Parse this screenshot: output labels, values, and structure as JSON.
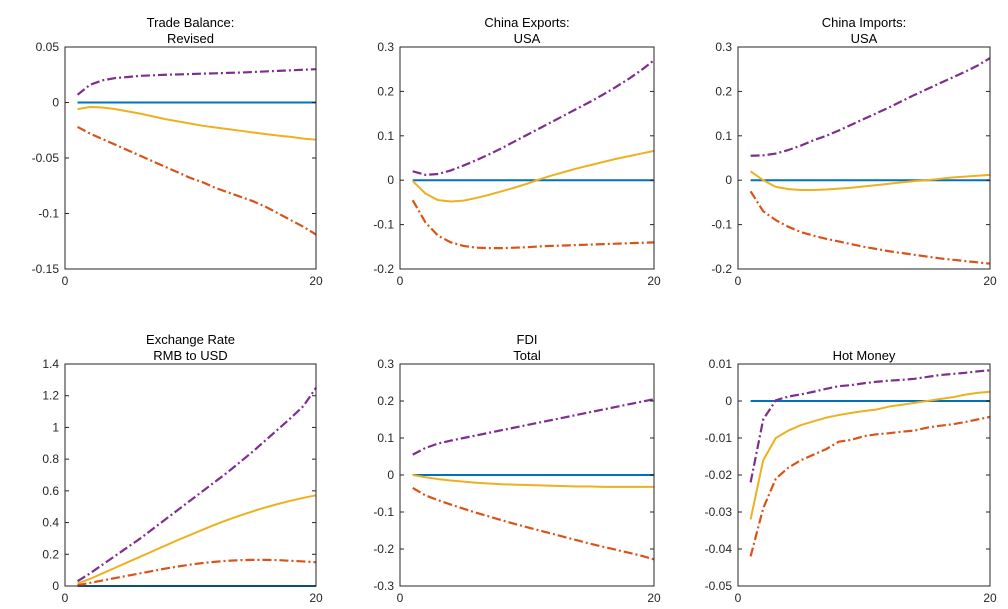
{
  "colors": {
    "zero": "#0072BD",
    "median": "#EDB120",
    "lower": "#D95319",
    "upper": "#7E2F8E",
    "axis": "#262626"
  },
  "chart_data": [
    {
      "type": "line",
      "title": [
        "Trade Balance:",
        "Revised"
      ],
      "xlim": [
        0,
        20
      ],
      "ylim": [
        -0.15,
        0.05
      ],
      "xticks": [
        0,
        20
      ],
      "xtick_labels": [
        "0",
        "20"
      ],
      "yticks": [
        -0.15,
        -0.1,
        -0.05,
        0,
        0.05
      ],
      "ytick_labels": [
        "-0.15",
        "-0.1",
        "-0.05",
        "0",
        "0.05"
      ],
      "x": [
        1,
        2,
        3,
        4,
        5,
        6,
        7,
        8,
        9,
        10,
        11,
        12,
        13,
        14,
        15,
        16,
        17,
        18,
        19,
        20
      ],
      "series": [
        {
          "role": "zero",
          "values": [
            0,
            0,
            0,
            0,
            0,
            0,
            0,
            0,
            0,
            0,
            0,
            0,
            0,
            0,
            0,
            0,
            0,
            0,
            0,
            0
          ]
        },
        {
          "role": "median",
          "values": [
            -0.006,
            -0.004,
            -0.0045,
            -0.006,
            -0.008,
            -0.01,
            -0.0125,
            -0.015,
            -0.017,
            -0.019,
            -0.021,
            -0.0225,
            -0.024,
            -0.0255,
            -0.027,
            -0.0285,
            -0.0298,
            -0.031,
            -0.0325,
            -0.0335
          ]
        },
        {
          "role": "lower",
          "values": [
            -0.022,
            -0.028,
            -0.033,
            -0.038,
            -0.043,
            -0.048,
            -0.053,
            -0.058,
            -0.063,
            -0.068,
            -0.072,
            -0.077,
            -0.081,
            -0.085,
            -0.089,
            -0.094,
            -0.1,
            -0.106,
            -0.112,
            -0.119
          ]
        },
        {
          "role": "upper",
          "values": [
            0.007,
            0.016,
            0.02,
            0.022,
            0.023,
            0.024,
            0.0245,
            0.025,
            0.0253,
            0.0256,
            0.026,
            0.0263,
            0.0267,
            0.027,
            0.0275,
            0.028,
            0.0285,
            0.029,
            0.0295,
            0.03
          ]
        }
      ]
    },
    {
      "type": "line",
      "title": [
        "China Exports:",
        "USA"
      ],
      "xlim": [
        0,
        20
      ],
      "ylim": [
        -0.2,
        0.3
      ],
      "xticks": [
        0,
        20
      ],
      "xtick_labels": [
        "0",
        "20"
      ],
      "yticks": [
        -0.2,
        -0.1,
        0,
        0.1,
        0.2,
        0.3
      ],
      "ytick_labels": [
        "-0.2",
        "-0.1",
        "0",
        "0.1",
        "0.2",
        "0.3"
      ],
      "x": [
        1,
        2,
        3,
        4,
        5,
        6,
        7,
        8,
        9,
        10,
        11,
        12,
        13,
        14,
        15,
        16,
        17,
        18,
        19,
        20
      ],
      "series": [
        {
          "role": "zero",
          "values": [
            0,
            0,
            0,
            0,
            0,
            0,
            0,
            0,
            0,
            0,
            0,
            0,
            0,
            0,
            0,
            0,
            0,
            0,
            0,
            0
          ]
        },
        {
          "role": "median",
          "values": [
            -0.002,
            -0.03,
            -0.045,
            -0.048,
            -0.046,
            -0.04,
            -0.033,
            -0.025,
            -0.017,
            -0.008,
            0.002,
            0.011,
            0.019,
            0.027,
            0.034,
            0.041,
            0.048,
            0.054,
            0.06,
            0.066
          ]
        },
        {
          "role": "lower",
          "values": [
            -0.045,
            -0.095,
            -0.125,
            -0.14,
            -0.148,
            -0.152,
            -0.153,
            -0.153,
            -0.152,
            -0.151,
            -0.149,
            -0.148,
            -0.147,
            -0.146,
            -0.145,
            -0.144,
            -0.143,
            -0.142,
            -0.141,
            -0.14
          ]
        },
        {
          "role": "upper",
          "values": [
            0.02,
            0.012,
            0.014,
            0.022,
            0.033,
            0.045,
            0.058,
            0.072,
            0.087,
            0.102,
            0.117,
            0.132,
            0.147,
            0.162,
            0.177,
            0.193,
            0.21,
            0.228,
            0.248,
            0.27
          ]
        }
      ]
    },
    {
      "type": "line",
      "title": [
        "China Imports:",
        "USA"
      ],
      "xlim": [
        0,
        20
      ],
      "ylim": [
        -0.2,
        0.3
      ],
      "xticks": [
        0,
        20
      ],
      "xtick_labels": [
        "0",
        "20"
      ],
      "yticks": [
        -0.2,
        -0.1,
        0,
        0.1,
        0.2,
        0.3
      ],
      "ytick_labels": [
        "-0.2",
        "-0.1",
        "0",
        "0.1",
        "0.2",
        "0.3"
      ],
      "x": [
        1,
        2,
        3,
        4,
        5,
        6,
        7,
        8,
        9,
        10,
        11,
        12,
        13,
        14,
        15,
        16,
        17,
        18,
        19,
        20
      ],
      "series": [
        {
          "role": "zero",
          "values": [
            0,
            0,
            0,
            0,
            0,
            0,
            0,
            0,
            0,
            0,
            0,
            0,
            0,
            0,
            0,
            0,
            0,
            0,
            0,
            0
          ]
        },
        {
          "role": "median",
          "values": [
            0.02,
            0.0,
            -0.015,
            -0.02,
            -0.022,
            -0.022,
            -0.021,
            -0.019,
            -0.017,
            -0.014,
            -0.011,
            -0.008,
            -0.005,
            -0.002,
            0.0,
            0.003,
            0.006,
            0.008,
            0.01,
            0.012
          ]
        },
        {
          "role": "lower",
          "values": [
            -0.025,
            -0.07,
            -0.09,
            -0.105,
            -0.117,
            -0.125,
            -0.132,
            -0.138,
            -0.144,
            -0.15,
            -0.155,
            -0.16,
            -0.164,
            -0.168,
            -0.172,
            -0.176,
            -0.179,
            -0.182,
            -0.185,
            -0.188
          ]
        },
        {
          "role": "upper",
          "values": [
            0.055,
            0.056,
            0.06,
            0.068,
            0.078,
            0.09,
            0.1,
            0.112,
            0.125,
            0.138,
            0.151,
            0.164,
            0.178,
            0.192,
            0.205,
            0.218,
            0.231,
            0.244,
            0.258,
            0.275
          ]
        }
      ]
    },
    {
      "type": "line",
      "title": [
        "Exchange Rate",
        "RMB to USD"
      ],
      "xlim": [
        0,
        20
      ],
      "ylim": [
        0,
        1.4
      ],
      "xticks": [
        0,
        20
      ],
      "xtick_labels": [
        "0",
        "20"
      ],
      "yticks": [
        0,
        0.2,
        0.4,
        0.6,
        0.8,
        1,
        1.2,
        1.4
      ],
      "ytick_labels": [
        "0",
        "0.2",
        "0.4",
        "0.6",
        "0.8",
        "1",
        "1.2",
        "1.4"
      ],
      "x": [
        1,
        2,
        3,
        4,
        5,
        6,
        7,
        8,
        9,
        10,
        11,
        12,
        13,
        14,
        15,
        16,
        17,
        18,
        19,
        20
      ],
      "series": [
        {
          "role": "zero",
          "values": [
            0,
            0,
            0,
            0,
            0,
            0,
            0,
            0,
            0,
            0,
            0,
            0,
            0,
            0,
            0,
            0,
            0,
            0,
            0,
            0
          ]
        },
        {
          "role": "median",
          "values": [
            0.015,
            0.045,
            0.08,
            0.115,
            0.15,
            0.185,
            0.22,
            0.255,
            0.29,
            0.323,
            0.356,
            0.388,
            0.418,
            0.446,
            0.472,
            0.496,
            0.518,
            0.538,
            0.556,
            0.572
          ]
        },
        {
          "role": "lower",
          "values": [
            0.005,
            0.02,
            0.035,
            0.05,
            0.065,
            0.08,
            0.095,
            0.11,
            0.123,
            0.135,
            0.145,
            0.153,
            0.159,
            0.163,
            0.165,
            0.165,
            0.163,
            0.159,
            0.155,
            0.15
          ]
        },
        {
          "role": "upper",
          "values": [
            0.03,
            0.08,
            0.135,
            0.19,
            0.245,
            0.3,
            0.36,
            0.42,
            0.48,
            0.54,
            0.6,
            0.66,
            0.72,
            0.785,
            0.85,
            0.92,
            0.99,
            1.06,
            1.135,
            1.25
          ]
        }
      ]
    },
    {
      "type": "line",
      "title": [
        "FDI",
        "Total"
      ],
      "xlim": [
        0,
        20
      ],
      "ylim": [
        -0.3,
        0.3
      ],
      "xticks": [
        0,
        20
      ],
      "xtick_labels": [
        "0",
        "20"
      ],
      "yticks": [
        -0.3,
        -0.2,
        -0.1,
        0,
        0.1,
        0.2,
        0.3
      ],
      "ytick_labels": [
        "-0.3",
        "-0.2",
        "-0.1",
        "0",
        "0.1",
        "0.2",
        "0.3"
      ],
      "x": [
        1,
        2,
        3,
        4,
        5,
        6,
        7,
        8,
        9,
        10,
        11,
        12,
        13,
        14,
        15,
        16,
        17,
        18,
        19,
        20
      ],
      "series": [
        {
          "role": "zero",
          "values": [
            0,
            0,
            0,
            0,
            0,
            0,
            0,
            0,
            0,
            0,
            0,
            0,
            0,
            0,
            0,
            0,
            0,
            0,
            0,
            0
          ]
        },
        {
          "role": "median",
          "values": [
            0.0,
            -0.006,
            -0.011,
            -0.015,
            -0.018,
            -0.021,
            -0.023,
            -0.025,
            -0.026,
            -0.027,
            -0.028,
            -0.029,
            -0.03,
            -0.031,
            -0.031,
            -0.032,
            -0.032,
            -0.032,
            -0.032,
            -0.032
          ]
        },
        {
          "role": "lower",
          "values": [
            -0.035,
            -0.055,
            -0.068,
            -0.08,
            -0.091,
            -0.102,
            -0.112,
            -0.122,
            -0.132,
            -0.141,
            -0.15,
            -0.159,
            -0.168,
            -0.177,
            -0.186,
            -0.194,
            -0.202,
            -0.21,
            -0.218,
            -0.228
          ]
        },
        {
          "role": "upper",
          "values": [
            0.055,
            0.073,
            0.085,
            0.093,
            0.1,
            0.107,
            0.114,
            0.121,
            0.128,
            0.135,
            0.142,
            0.149,
            0.156,
            0.163,
            0.17,
            0.177,
            0.184,
            0.191,
            0.198,
            0.205
          ]
        }
      ]
    },
    {
      "type": "line",
      "title": [
        "Hot Money"
      ],
      "xlim": [
        0,
        20
      ],
      "ylim": [
        -0.05,
        0.01
      ],
      "xticks": [
        0,
        20
      ],
      "xtick_labels": [
        "0",
        "20"
      ],
      "yticks": [
        -0.05,
        -0.04,
        -0.03,
        -0.02,
        -0.01,
        0,
        0.01
      ],
      "ytick_labels": [
        "-0.05",
        "-0.04",
        "-0.03",
        "-0.02",
        "-0.01",
        "0",
        "0.01"
      ],
      "x": [
        1,
        2,
        3,
        4,
        5,
        6,
        7,
        8,
        9,
        10,
        11,
        12,
        13,
        14,
        15,
        16,
        17,
        18,
        19,
        20
      ],
      "series": [
        {
          "role": "zero",
          "values": [
            0,
            0,
            0,
            0,
            0,
            0,
            0,
            0,
            0,
            0,
            0,
            0,
            0,
            0,
            0,
            0,
            0,
            0,
            0,
            0
          ]
        },
        {
          "role": "median",
          "values": [
            -0.032,
            -0.016,
            -0.01,
            -0.008,
            -0.0065,
            -0.0055,
            -0.0045,
            -0.0038,
            -0.0032,
            -0.0027,
            -0.0023,
            -0.0015,
            -0.001,
            -0.0005,
            0.0,
            0.0005,
            0.001,
            0.0017,
            0.0022,
            0.0025
          ]
        },
        {
          "role": "lower",
          "values": [
            -0.042,
            -0.029,
            -0.021,
            -0.018,
            -0.016,
            -0.0145,
            -0.013,
            -0.011,
            -0.0105,
            -0.0095,
            -0.009,
            -0.0087,
            -0.0083,
            -0.008,
            -0.0072,
            -0.0067,
            -0.0063,
            -0.0057,
            -0.005,
            -0.0043
          ]
        },
        {
          "role": "upper",
          "values": [
            -0.022,
            -0.005,
            0.0002,
            0.0012,
            0.0018,
            0.0025,
            0.0033,
            0.004,
            0.0043,
            0.0048,
            0.0052,
            0.0055,
            0.0057,
            0.006,
            0.0065,
            0.007,
            0.0073,
            0.0076,
            0.008,
            0.0083
          ]
        }
      ]
    }
  ]
}
